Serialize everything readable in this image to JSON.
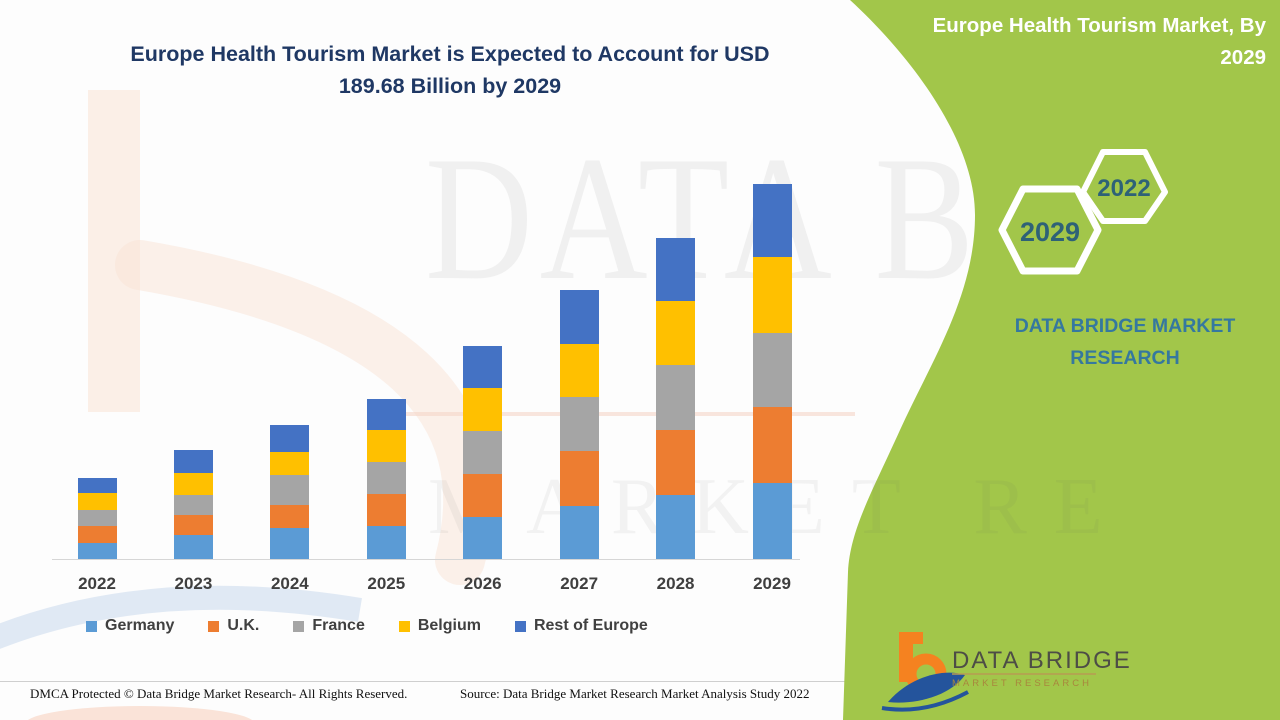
{
  "header": {
    "title_line1": "Europe Health Tourism Market is Expected to Account for USD",
    "title_line2": "189.68 Billion by 2029"
  },
  "side_panel": {
    "title": "Europe Health Tourism Market, By 2029",
    "hexagons": [
      {
        "label": "2029"
      },
      {
        "label": "2022"
      }
    ],
    "org_line1": "DATA BRIDGE MARKET",
    "org_line2": "RESEARCH",
    "logo": {
      "name": "DATA BRIDGE",
      "subtitle": "MARKET RESEARCH"
    },
    "accent_green": "#a2c64a",
    "hexagon_text_color": "#2e6277"
  },
  "watermark": {
    "line1": "DATA B",
    "line2": "MARKET RE"
  },
  "chart_data": {
    "type": "bar",
    "subtype": "stacked",
    "title": "Europe Health Tourism Market is Expected to Account for USD 189.68 Billion by 2029",
    "unit": "USD Billion",
    "categories": [
      "2022",
      "2023",
      "2024",
      "2025",
      "2026",
      "2027",
      "2028",
      "2029"
    ],
    "series": [
      {
        "name": "Germany",
        "color": "#5B9BD5",
        "values": [
          8.1,
          12.3,
          15.5,
          16.5,
          21.2,
          26.6,
          32.4,
          38.3
        ]
      },
      {
        "name": "U.K.",
        "color": "#ED7D31",
        "values": [
          8.4,
          10.1,
          11.8,
          16.4,
          22.0,
          27.8,
          32.9,
          38.6
        ]
      },
      {
        "name": "France",
        "color": "#A5A5A5",
        "values": [
          8.4,
          10.1,
          15.2,
          16.0,
          21.5,
          27.6,
          32.9,
          37.2
        ]
      },
      {
        "name": "Belgium",
        "color": "#FFC000",
        "values": [
          8.4,
          11.0,
          11.8,
          16.4,
          21.7,
          26.6,
          32.4,
          38.7
        ]
      },
      {
        "name": "Rest of Europe",
        "color": "#4472C4",
        "values": [
          7.6,
          11.8,
          13.5,
          15.7,
          21.2,
          27.3,
          31.9,
          36.9
        ]
      }
    ],
    "totals_by_year": [
      40.9,
      55.3,
      67.8,
      81.0,
      107.6,
      135.9,
      162.5,
      189.68
    ],
    "anchor_value_2029": 189.68,
    "xlabel": "",
    "ylabel": "",
    "ylim": [
      0,
      200
    ],
    "grid": false,
    "y_axis_shown": false,
    "legend_position": "bottom"
  },
  "footer": {
    "left": "DMCA Protected © Data Bridge Market Research- All Rights Reserved.",
    "right": "Source: Data Bridge Market Research Market Analysis Study 2022"
  }
}
